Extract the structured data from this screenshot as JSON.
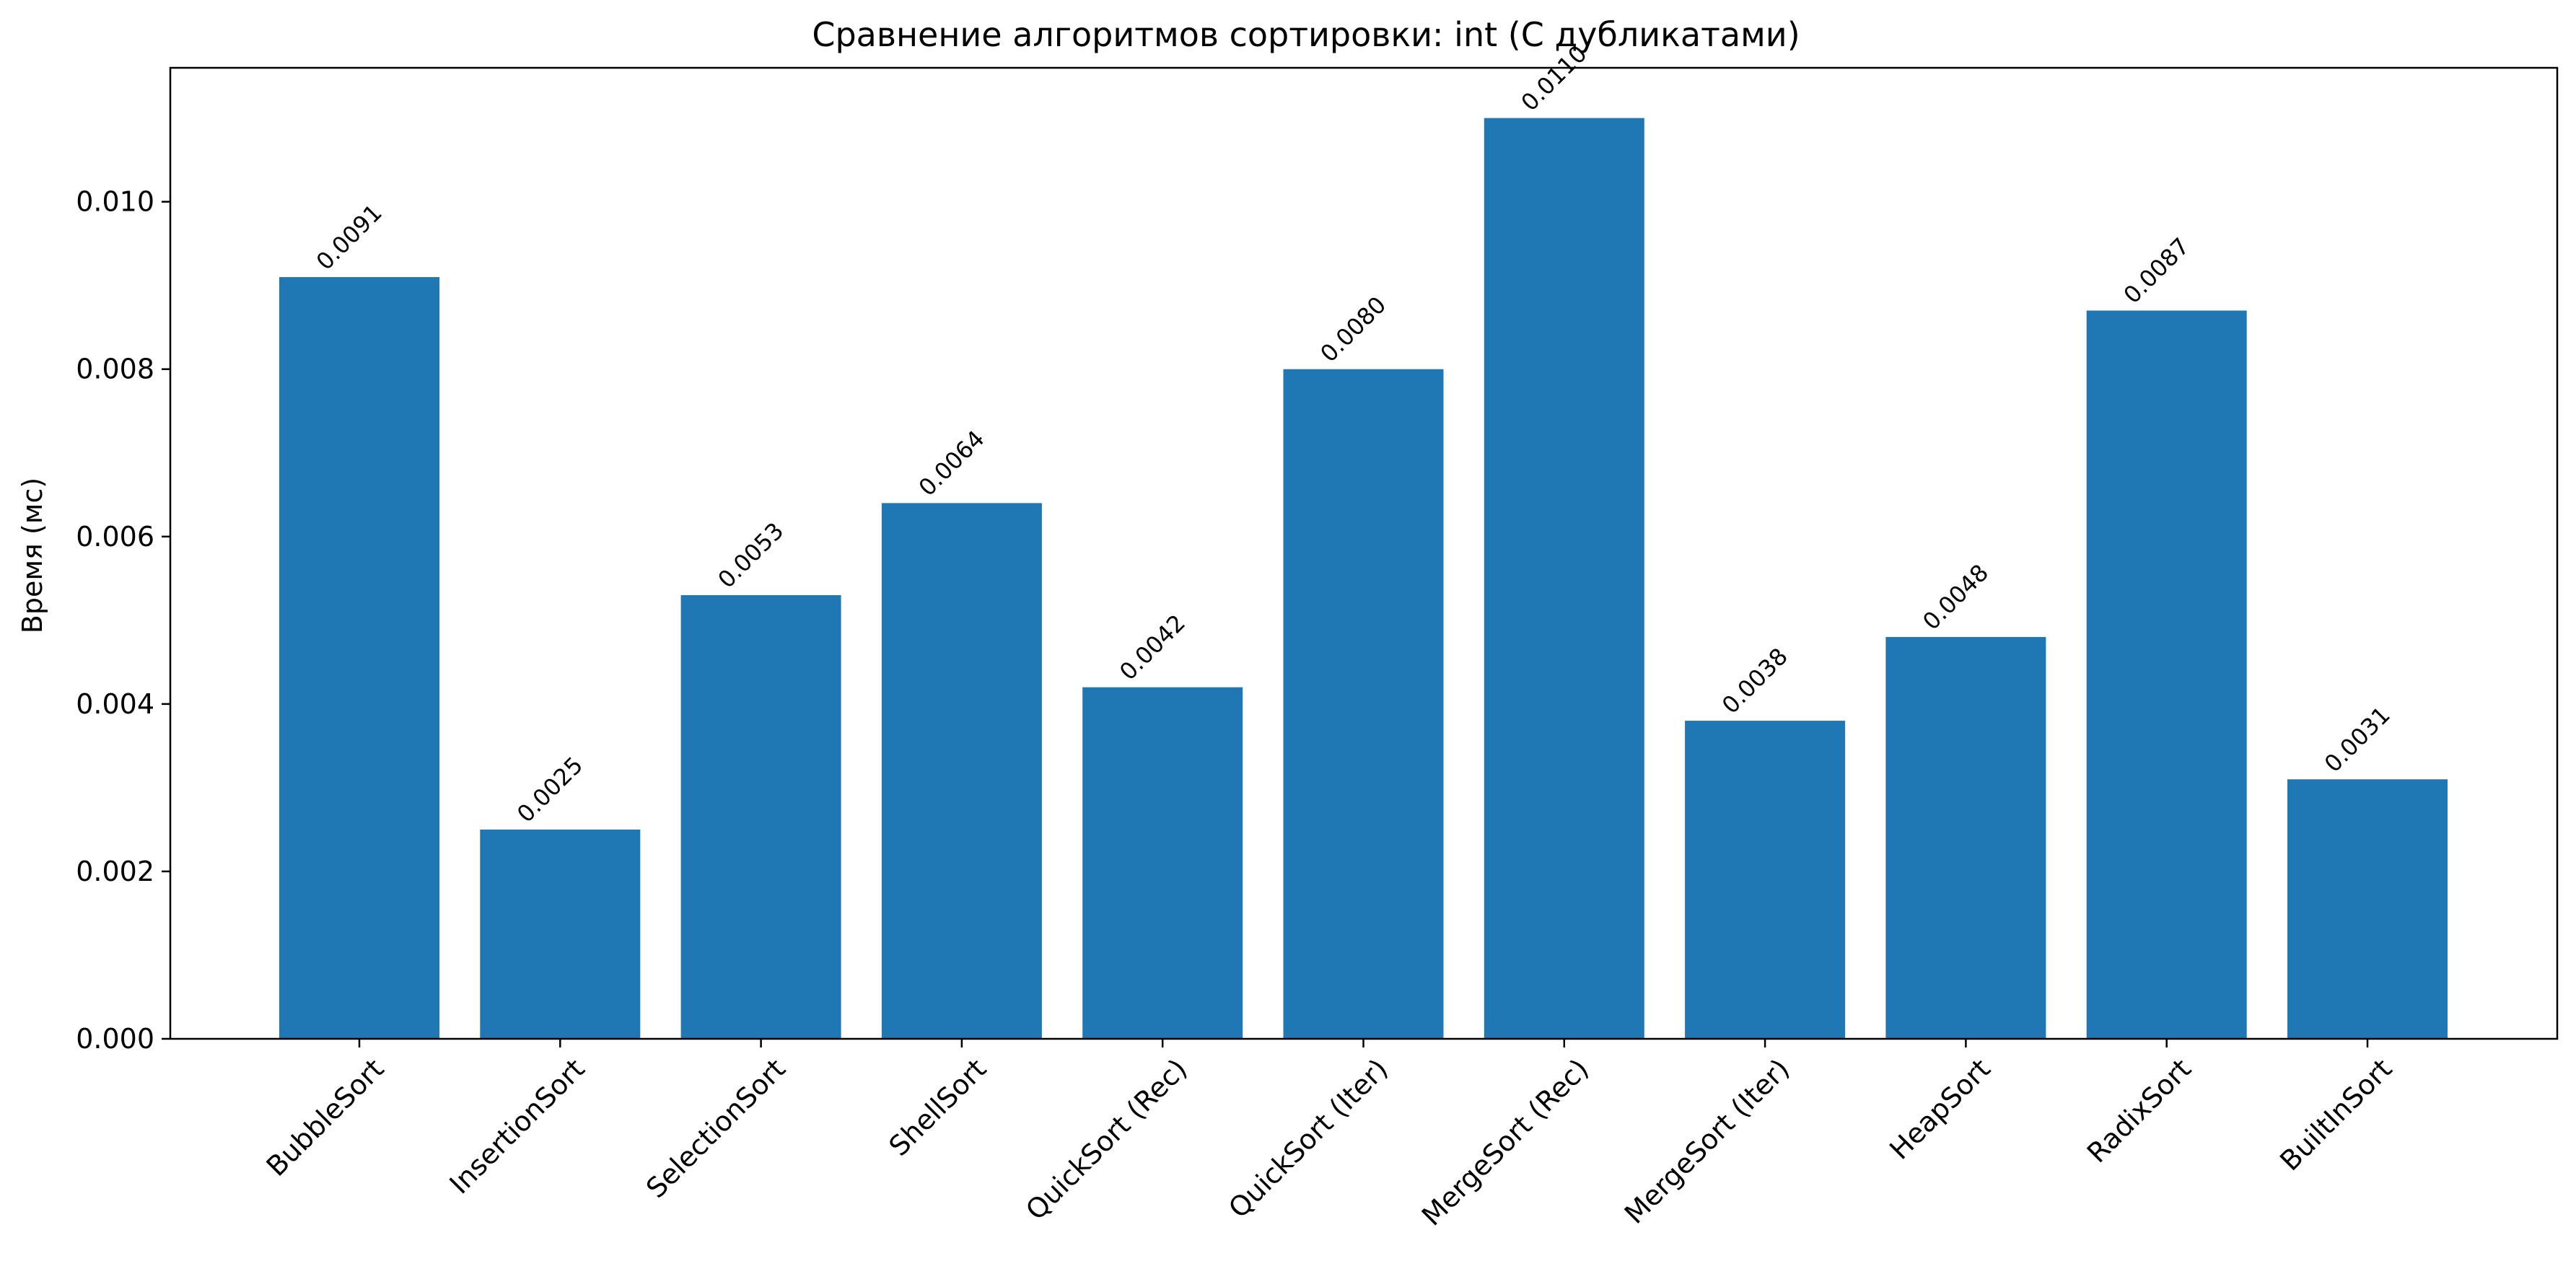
{
  "chart_data": {
    "type": "bar",
    "title": "Сравнение алгоритмов сортировки: int (С дубликатами)",
    "xlabel": "",
    "ylabel": "Время (мс)",
    "ylim": [
      0,
      0.0116
    ],
    "yticks": [
      "0.000",
      "0.002",
      "0.004",
      "0.006",
      "0.008",
      "0.010"
    ],
    "ytick_values": [
      0,
      0.002,
      0.004,
      0.006,
      0.008,
      0.01
    ],
    "categories": [
      "BubbleSort",
      "InsertionSort",
      "SelectionSort",
      "ShellSort",
      "QuickSort (Rec)",
      "QuickSort (Iter)",
      "MergeSort (Rec)",
      "MergeSort (Iter)",
      "HeapSort",
      "RadixSort",
      "BuiltInSort"
    ],
    "values": [
      0.0091,
      0.0025,
      0.0053,
      0.0064,
      0.0042,
      0.008,
      0.011,
      0.0038,
      0.0048,
      0.0087,
      0.0031
    ],
    "data_labels": [
      "0.0091",
      "0.0025",
      "0.0053",
      "0.0064",
      "0.0042",
      "0.0080",
      "0.0110",
      "0.0038",
      "0.0048",
      "0.0087",
      "0.0031"
    ],
    "bar_color": "#1f77b4",
    "grid": false,
    "legend": false
  }
}
